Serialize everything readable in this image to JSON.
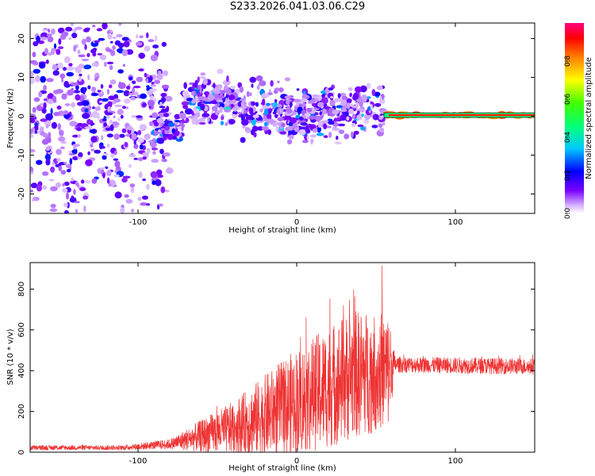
{
  "title": "S233.2026.041.03.06.C29",
  "chart_data": [
    {
      "type": "heatmap",
      "xlabel": "Height of straight line (km)",
      "ylabel": "Frequency (Hz)",
      "xlim": [
        -168,
        150
      ],
      "ylim": [
        -25,
        24
      ],
      "xticks": [
        -100,
        0,
        100
      ],
      "yticks": [
        -20,
        -10,
        0,
        10,
        20
      ],
      "colorbar": {
        "label": "Normalized spectral amplitude",
        "range": [
          0,
          1
        ],
        "ticks": [
          "0.0",
          "0.2",
          "0.4",
          "0.6",
          "0.8"
        ],
        "tick_values": [
          0,
          0.2,
          0.4,
          0.6,
          0.8
        ]
      },
      "regions": [
        {
          "x": [
            -168,
            -80
          ],
          "freq_center": 0,
          "freq_spread": 24,
          "amplitude": 0.08,
          "desc": "diffuse noise"
        },
        {
          "x": [
            -90,
            -72
          ],
          "freq_center": -3,
          "freq_spread": 3,
          "amplitude": 0.22
        },
        {
          "x": [
            -72,
            -35
          ],
          "freq_center": 4,
          "freq_spread": 5,
          "amplitude": 0.25
        },
        {
          "x": [
            -35,
            55
          ],
          "freq_center": 1,
          "freq_spread": 6,
          "amplitude": 0.18
        },
        {
          "x": [
            55,
            150
          ],
          "freq_center": 0.3,
          "freq_spread": 0.8,
          "amplitude": 0.9,
          "desc": "narrow carrier line"
        }
      ]
    },
    {
      "type": "line",
      "xlabel": "Height of straight line (km)",
      "ylabel": "SNR (10 * v/v)",
      "xlim": [
        -168,
        150
      ],
      "ylim": [
        0,
        930
      ],
      "xticks": [
        -100,
        0,
        100
      ],
      "yticks": [
        0,
        200,
        400,
        600,
        800
      ],
      "color": "#ee3333",
      "series": [
        {
          "name": "SNR",
          "envelope": [
            {
              "x": -168,
              "mean": 22,
              "spread": 12
            },
            {
              "x": -110,
              "mean": 22,
              "spread": 12
            },
            {
              "x": -80,
              "mean": 40,
              "spread": 25
            },
            {
              "x": -60,
              "mean": 80,
              "spread": 80
            },
            {
              "x": -40,
              "mean": 120,
              "spread": 130
            },
            {
              "x": -20,
              "mean": 180,
              "spread": 200
            },
            {
              "x": 0,
              "mean": 250,
              "spread": 260
            },
            {
              "x": 20,
              "mean": 320,
              "spread": 300
            },
            {
              "x": 35,
              "mean": 380,
              "spread": 320
            },
            {
              "x": 58,
              "mean": 400,
              "spread": 280
            },
            {
              "x": 62,
              "mean": 430,
              "spread": 40
            },
            {
              "x": 150,
              "mean": 420,
              "spread": 40
            }
          ]
        }
      ]
    }
  ]
}
